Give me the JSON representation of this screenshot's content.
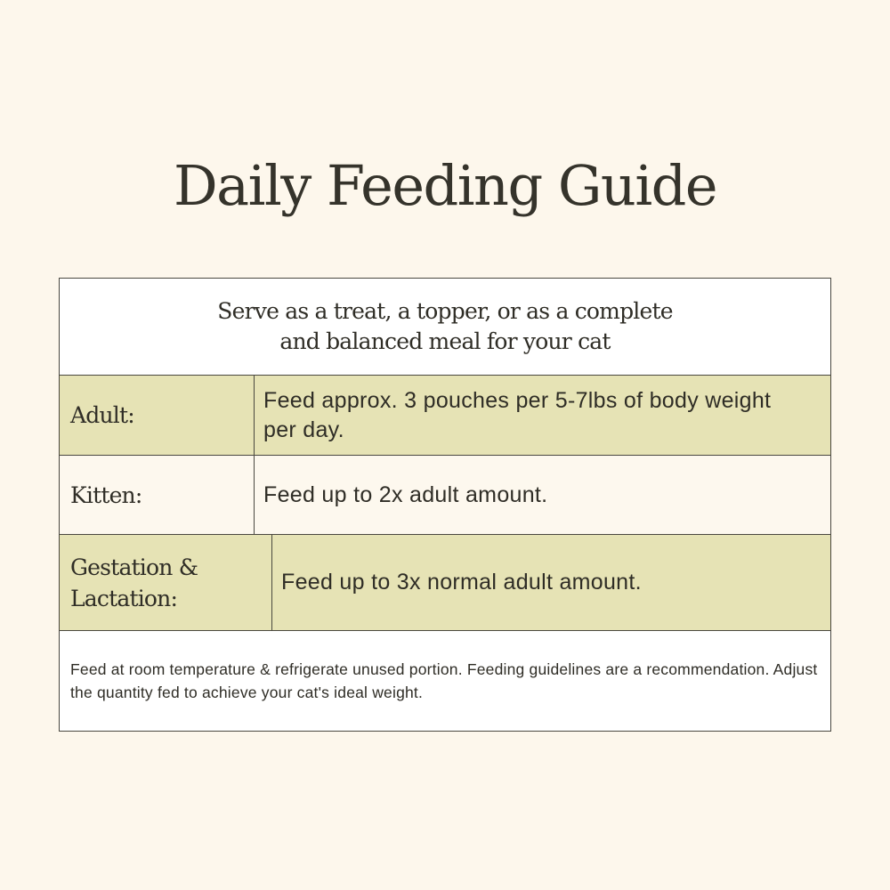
{
  "title": "Daily Feeding Guide",
  "intro": "Serve as a treat, a topper, or as a complete and balanced meal for your cat",
  "rows": [
    {
      "label": "Adult:",
      "value": "Feed approx. 3 pouches per 5-7lbs of body weight per day."
    },
    {
      "label": "Kitten:",
      "value": "Feed up to 2x adult amount."
    },
    {
      "label": "Gestation & Lactation:",
      "value": "Feed up to 3x normal adult amount."
    }
  ],
  "footnote": "Feed at room temperature & refrigerate unused portion. Feeding guidelines are a recommendation. Adjust the quantity fed to achieve your cat's ideal weight.",
  "colors": {
    "background": "#fdf7ec",
    "highlight_row": "#e6e3b5",
    "text": "#2f2d26"
  }
}
